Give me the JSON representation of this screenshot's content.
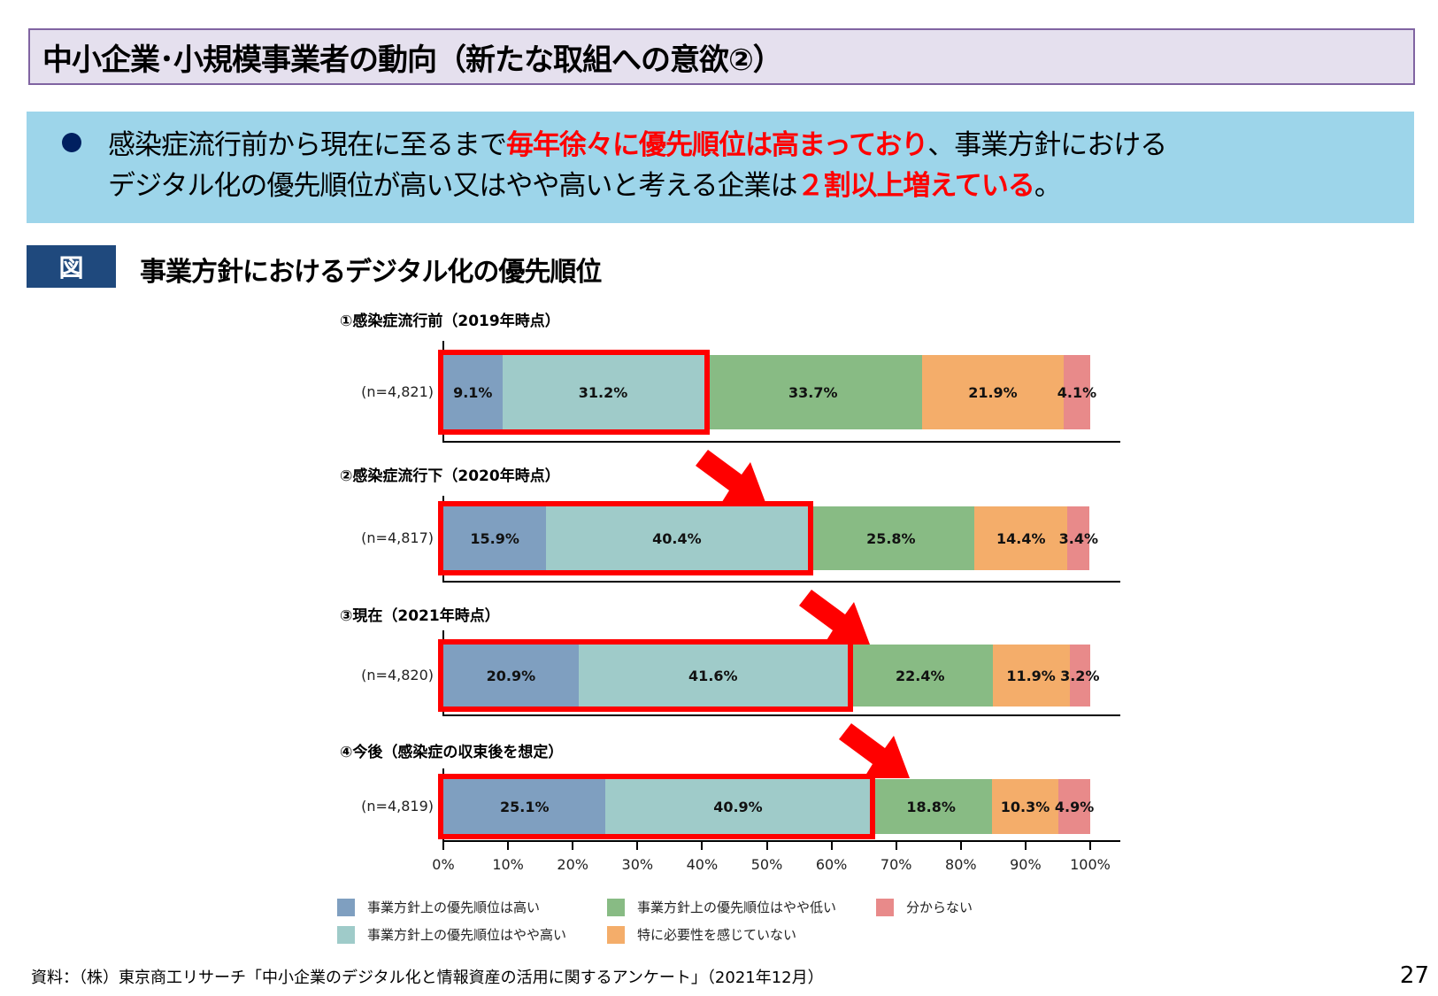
{
  "header": {
    "title": "中小企業･小規模事業者の動向（新たな取組への意欲②）"
  },
  "summary": {
    "line1_plain_a": "感染症流行前から現在に至るまで",
    "line1_red": "毎年徐々に優先順位は高まっており",
    "line1_plain_b": "、事業方針における",
    "line2_plain_a": "デジタル化の優先順位が高い又はやや高いと考える企業は",
    "line2_red": "２割以上増えている",
    "line2_plain_b": "。"
  },
  "figure": {
    "badge": "図",
    "title": "事業方針におけるデジタル化の優先順位"
  },
  "colors": {
    "high": "#7f9fc0",
    "somewhat_high": "#9fcbc9",
    "somewhat_low": "#88bb84",
    "not_needed": "#f4ad6a",
    "unknown": "#e88a8a",
    "highlight": "#ff0000",
    "title_bg": "#e5e0ee",
    "title_border": "#8064a2",
    "summary_bg": "#9dd5ea",
    "badge_bg": "#1f497d"
  },
  "chart_data": {
    "type": "bar",
    "orientation": "horizontal",
    "stacked": true,
    "title": "事業方針におけるデジタル化の優先順位",
    "xlabel": "",
    "ylabel": "",
    "xlim": [
      0,
      100
    ],
    "x_ticks": [
      "0%",
      "10%",
      "20%",
      "30%",
      "40%",
      "50%",
      "60%",
      "70%",
      "80%",
      "90%",
      "100%"
    ],
    "legend_position": "bottom",
    "categories": [
      "①感染症流行前（2019年時点）",
      "②感染症流行下（2020年時点）",
      "③現在（2021年時点）",
      "④今後（感染症の収束後を想定）"
    ],
    "n_labels": [
      "(n=4,821)",
      "(n=4,817)",
      "(n=4,820)",
      "(n=4,819)"
    ],
    "series": [
      {
        "name": "事業方針上の優先順位は高い",
        "values": [
          9.1,
          15.9,
          20.9,
          25.1
        ]
      },
      {
        "name": "事業方針上の優先順位はやや高い",
        "values": [
          31.2,
          40.4,
          41.6,
          40.9
        ]
      },
      {
        "name": "事業方針上の優先順位はやや低い",
        "values": [
          33.7,
          25.8,
          22.4,
          18.8
        ]
      },
      {
        "name": "特に必要性を感じていない",
        "values": [
          21.9,
          14.4,
          11.9,
          10.3
        ]
      },
      {
        "name": "分からない",
        "values": [
          4.1,
          3.4,
          3.2,
          4.9
        ]
      }
    ],
    "data_labels": [
      [
        "9.1%",
        "31.2%",
        "33.7%",
        "21.9%",
        "4.1%"
      ],
      [
        "15.9%",
        "40.4%",
        "25.8%",
        "14.4%",
        "3.4%"
      ],
      [
        "20.9%",
        "41.6%",
        "22.4%",
        "11.9%",
        "3.2%"
      ],
      [
        "25.1%",
        "40.9%",
        "18.8%",
        "10.3%",
        "4.9%"
      ]
    ],
    "annotations": [
      "Red boxes highlight 高い + やや高い segments in each bar",
      "Red arrows between panels indicate increasing trend"
    ]
  },
  "legend": [
    {
      "label": "事業方針上の優先順位は高い",
      "color": "#7f9fc0"
    },
    {
      "label": "事業方針上の優先順位はやや低い",
      "color": "#88bb84"
    },
    {
      "label": "分からない",
      "color": "#e88a8a"
    },
    {
      "label": "事業方針上の優先順位はやや高い",
      "color": "#9fcbc9"
    },
    {
      "label": "特に必要性を感じていない",
      "color": "#f4ad6a"
    }
  ],
  "footer": {
    "source": "資料：（株）東京商工リサーチ「中小企業のデジタル化と情報資産の活用に関するアンケート」（2021年12月）",
    "page_number": "27"
  }
}
